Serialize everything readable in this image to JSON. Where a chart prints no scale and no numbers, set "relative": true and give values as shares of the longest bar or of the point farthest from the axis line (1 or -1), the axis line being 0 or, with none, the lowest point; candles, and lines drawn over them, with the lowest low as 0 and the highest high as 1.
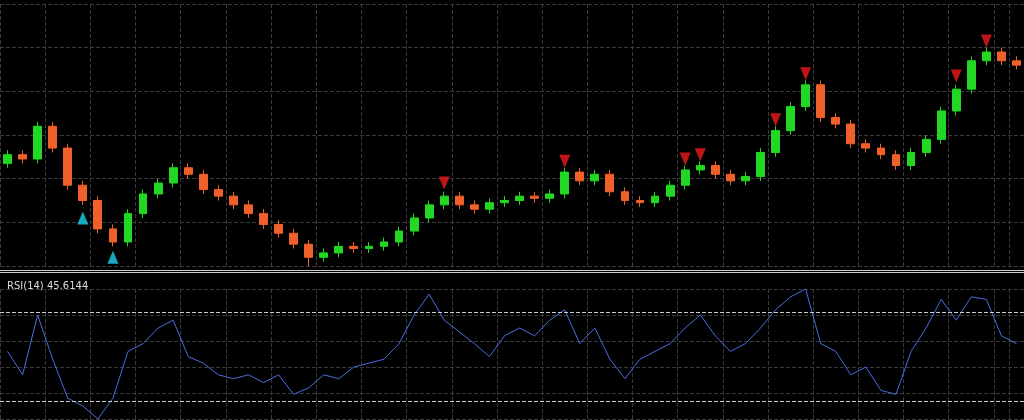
{
  "chart_data": [
    {
      "type": "candlestick",
      "relative": true,
      "grid": true,
      "colors": [
        "#22d822",
        "#f0602a",
        "#22d822",
        "#f0602a",
        "#f0602a",
        "#f0602a",
        "#f0602a",
        "#f0602a",
        "#22d822",
        "#22d822",
        "#22d822",
        "#22d822",
        "#f0602a",
        "#f0602a",
        "#f0602a",
        "#f0602a",
        "#f0602a",
        "#f0602a",
        "#f0602a",
        "#f0602a",
        "#f0602a",
        "#22d822",
        "#22d822",
        "#f0602a",
        "#22d822",
        "#22d822",
        "#22d822",
        "#22d822",
        "#22d822",
        "#22d822",
        "#f0602a",
        "#f0602a",
        "#22d822",
        "#22d822",
        "#22d822",
        "#f0602a",
        "#22d822",
        "#22d822",
        "#f0602a",
        "#22d822",
        "#f0602a",
        "#f0602a",
        "#f0602a",
        "#22d822",
        "#22d822",
        "#22d822",
        "#22d822",
        "#f0602a",
        "#f0602a",
        "#22d822",
        "#22d822",
        "#22d822",
        "#22d822",
        "#22d822",
        "#f0602a",
        "#f0602a",
        "#f0602a",
        "#f0602a",
        "#f0602a",
        "#f0602a",
        "#22d822",
        "#22d822",
        "#22d822",
        "#22d822",
        "#22d822",
        "#22d822",
        "#f0602a",
        "#f0602a"
      ],
      "categories": [
        null,
        null,
        null,
        null,
        null,
        null,
        null,
        null,
        null,
        null,
        null,
        null,
        null,
        null,
        null,
        null,
        null,
        null,
        null,
        null,
        null,
        null,
        null,
        null,
        null,
        null,
        null,
        null,
        null,
        null,
        null,
        null,
        null,
        null,
        null,
        null,
        null,
        null,
        null,
        null,
        null,
        null,
        null,
        null,
        null,
        null,
        null,
        null,
        null,
        null,
        null,
        null,
        null,
        null,
        null,
        null,
        null,
        null,
        null,
        null,
        null,
        null,
        null,
        null,
        null,
        null,
        null,
        null
      ],
      "ohlc": [
        [
          0.47,
          0.53,
          0.45,
          0.51
        ],
        [
          0.51,
          0.53,
          0.47,
          0.49
        ],
        [
          0.49,
          0.66,
          0.47,
          0.64
        ],
        [
          0.64,
          0.66,
          0.52,
          0.54
        ],
        [
          0.54,
          0.56,
          0.35,
          0.37
        ],
        [
          0.37,
          0.39,
          0.28,
          0.3
        ],
        [
          0.3,
          0.32,
          0.15,
          0.17
        ],
        [
          0.17,
          0.19,
          0.09,
          0.11
        ],
        [
          0.11,
          0.26,
          0.09,
          0.24
        ],
        [
          0.24,
          0.35,
          0.22,
          0.33
        ],
        [
          0.33,
          0.4,
          0.31,
          0.38
        ],
        [
          0.38,
          0.47,
          0.36,
          0.45
        ],
        [
          0.45,
          0.47,
          0.4,
          0.42
        ],
        [
          0.42,
          0.44,
          0.33,
          0.35
        ],
        [
          0.35,
          0.37,
          0.3,
          0.32
        ],
        [
          0.32,
          0.34,
          0.26,
          0.28
        ],
        [
          0.28,
          0.3,
          0.22,
          0.24
        ],
        [
          0.24,
          0.26,
          0.17,
          0.19
        ],
        [
          0.19,
          0.21,
          0.13,
          0.15
        ],
        [
          0.15,
          0.17,
          0.08,
          0.1
        ],
        [
          0.1,
          0.12,
          0.0,
          0.04
        ],
        [
          0.04,
          0.08,
          0.02,
          0.06
        ],
        [
          0.06,
          0.11,
          0.04,
          0.09
        ],
        [
          0.09,
          0.11,
          0.06,
          0.08
        ],
        [
          0.08,
          0.11,
          0.06,
          0.09
        ],
        [
          0.09,
          0.13,
          0.07,
          0.11
        ],
        [
          0.11,
          0.18,
          0.09,
          0.16
        ],
        [
          0.16,
          0.24,
          0.14,
          0.22
        ],
        [
          0.22,
          0.3,
          0.2,
          0.28
        ],
        [
          0.28,
          0.34,
          0.26,
          0.32
        ],
        [
          0.32,
          0.34,
          0.26,
          0.28
        ],
        [
          0.28,
          0.3,
          0.24,
          0.26
        ],
        [
          0.26,
          0.31,
          0.24,
          0.29
        ],
        [
          0.29,
          0.32,
          0.27,
          0.3
        ],
        [
          0.3,
          0.34,
          0.28,
          0.32
        ],
        [
          0.32,
          0.34,
          0.29,
          0.31
        ],
        [
          0.31,
          0.35,
          0.29,
          0.33
        ],
        [
          0.33,
          0.45,
          0.31,
          0.43
        ],
        [
          0.43,
          0.45,
          0.37,
          0.39
        ],
        [
          0.39,
          0.44,
          0.37,
          0.42
        ],
        [
          0.42,
          0.44,
          0.32,
          0.34
        ],
        [
          0.34,
          0.36,
          0.28,
          0.3
        ],
        [
          0.3,
          0.32,
          0.27,
          0.29
        ],
        [
          0.29,
          0.34,
          0.27,
          0.32
        ],
        [
          0.32,
          0.39,
          0.3,
          0.37
        ],
        [
          0.37,
          0.46,
          0.35,
          0.44
        ],
        [
          0.44,
          0.48,
          0.42,
          0.46
        ],
        [
          0.46,
          0.48,
          0.4,
          0.42
        ],
        [
          0.42,
          0.44,
          0.37,
          0.39
        ],
        [
          0.39,
          0.43,
          0.37,
          0.41
        ],
        [
          0.41,
          0.54,
          0.39,
          0.52
        ],
        [
          0.52,
          0.64,
          0.5,
          0.62
        ],
        [
          0.62,
          0.75,
          0.6,
          0.73
        ],
        [
          0.73,
          0.85,
          0.71,
          0.83
        ],
        [
          0.83,
          0.85,
          0.66,
          0.68
        ],
        [
          0.68,
          0.7,
          0.63,
          0.65
        ],
        [
          0.65,
          0.67,
          0.54,
          0.56
        ],
        [
          0.56,
          0.58,
          0.52,
          0.54
        ],
        [
          0.54,
          0.56,
          0.49,
          0.51
        ],
        [
          0.51,
          0.53,
          0.44,
          0.46
        ],
        [
          0.46,
          0.54,
          0.44,
          0.52
        ],
        [
          0.52,
          0.6,
          0.5,
          0.58
        ],
        [
          0.58,
          0.73,
          0.56,
          0.71
        ],
        [
          0.71,
          0.83,
          0.69,
          0.81
        ],
        [
          0.81,
          0.96,
          0.79,
          0.94
        ],
        [
          0.94,
          1.0,
          0.92,
          0.98
        ],
        [
          0.98,
          1.0,
          0.92,
          0.94
        ],
        [
          0.94,
          0.96,
          0.9,
          0.92
        ]
      ],
      "series": [
        {
          "type": "scatter",
          "marker": "triangle",
          "color": "#19d3f0",
          "values": [
            null,
            null,
            null,
            null,
            null,
            0.22,
            null,
            0.04,
            null,
            null,
            null,
            null,
            null,
            null,
            null,
            null,
            null,
            null,
            null,
            null,
            null,
            null,
            null,
            null,
            null,
            null,
            null,
            null,
            null,
            null,
            null,
            null,
            null,
            null,
            null,
            null,
            null,
            null,
            null,
            null,
            null,
            null,
            null,
            null,
            null,
            null,
            null,
            null,
            null,
            null,
            null,
            null,
            null,
            null,
            null,
            null,
            null,
            null,
            null,
            null,
            null,
            null,
            null,
            null,
            null,
            null,
            null,
            null
          ]
        },
        {
          "type": "scatter",
          "marker": "triangle",
          "color": "#ee1c1c",
          "values": [
            null,
            null,
            null,
            null,
            null,
            null,
            null,
            null,
            null,
            null,
            null,
            null,
            null,
            null,
            null,
            null,
            null,
            null,
            null,
            null,
            null,
            null,
            null,
            null,
            null,
            null,
            null,
            null,
            null,
            0.38,
            null,
            null,
            null,
            null,
            null,
            null,
            null,
            0.48,
            null,
            null,
            null,
            null,
            null,
            null,
            null,
            0.49,
            0.51,
            null,
            null,
            null,
            null,
            0.67,
            null,
            0.88,
            null,
            null,
            null,
            null,
            null,
            null,
            null,
            null,
            null,
            0.87,
            null,
            1.03,
            null,
            null
          ]
        }
      ]
    },
    {
      "type": "line",
      "relative": true,
      "grid": true,
      "title": "RSI(14) 45.6144",
      "marker": "none",
      "line_style": "solid",
      "categories": [
        null,
        null,
        null,
        null,
        null,
        null,
        null,
        null,
        null,
        null,
        null,
        null,
        null,
        null,
        null,
        null,
        null,
        null,
        null,
        null,
        null,
        null,
        null,
        null,
        null,
        null,
        null,
        null,
        null,
        null,
        null,
        null,
        null,
        null,
        null,
        null,
        null,
        null,
        null,
        null,
        null,
        null,
        null,
        null,
        null,
        null,
        null,
        null,
        null,
        null,
        null,
        null,
        null,
        null,
        null,
        null,
        null,
        null,
        null,
        null,
        null,
        null,
        null,
        null,
        null,
        null,
        null,
        null
      ],
      "series": [
        {
          "color": "#4a6ee0",
          "values": [
            0.52,
            0.34,
            0.8,
            0.46,
            0.16,
            0.1,
            0.0,
            0.16,
            0.52,
            0.58,
            0.7,
            0.76,
            0.48,
            0.43,
            0.34,
            0.31,
            0.34,
            0.28,
            0.34,
            0.19,
            0.24,
            0.34,
            0.31,
            0.4,
            0.43,
            0.46,
            0.58,
            0.8,
            0.96,
            0.76,
            0.67,
            0.58,
            0.48,
            0.64,
            0.7,
            0.64,
            0.76,
            0.84,
            0.58,
            0.7,
            0.46,
            0.31,
            0.46,
            0.52,
            0.58,
            0.7,
            0.8,
            0.64,
            0.52,
            0.58,
            0.7,
            0.84,
            0.94,
            1.0,
            0.58,
            0.52,
            0.34,
            0.4,
            0.22,
            0.19,
            0.52,
            0.7,
            0.92,
            0.76,
            0.94,
            0.92,
            0.64,
            0.58
          ]
        }
      ],
      "ref_lines": [
        {
          "axis": "y",
          "value": 0.82,
          "color": "#cccccc",
          "line_style": "dashed"
        },
        {
          "axis": "y",
          "value": 0.14,
          "color": "#cccccc",
          "line_style": "dashed"
        }
      ]
    }
  ]
}
